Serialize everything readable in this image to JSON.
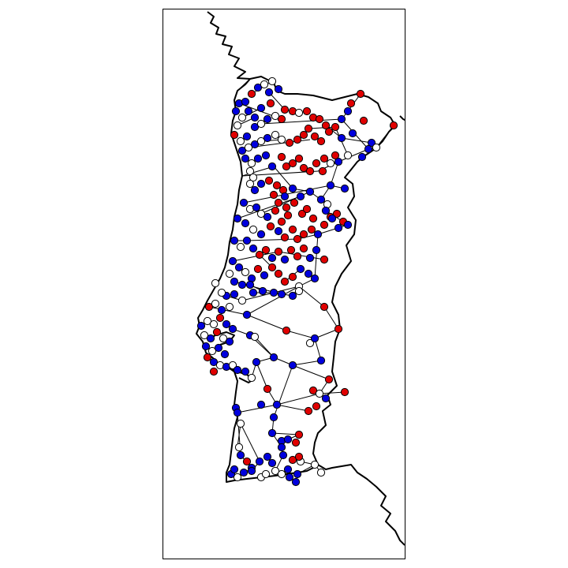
{
  "map": {
    "colors": {
      "background": "#ffffff",
      "coastline": "#000000",
      "edge": "#000000",
      "node_outline": "#000000",
      "red": "#e00000",
      "blue": "#0000dd",
      "white": "#ffffff"
    },
    "legend": {
      "red": "node-red",
      "blue": "node-blue",
      "white": "node-white"
    }
  }
}
